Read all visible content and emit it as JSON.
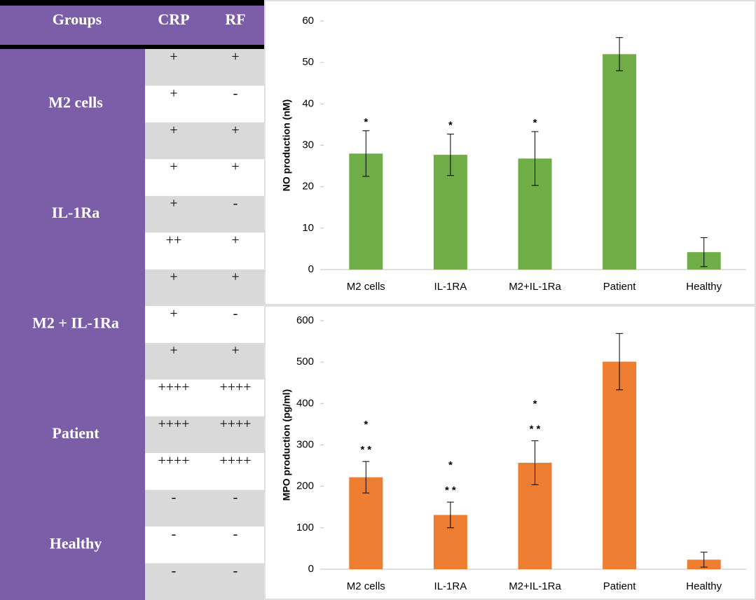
{
  "table": {
    "header": [
      "Groups",
      "CRP",
      "RF"
    ],
    "groups": [
      {
        "name": "M2 cells",
        "rows": [
          [
            "+",
            "+"
          ],
          [
            "+",
            "-"
          ],
          [
            "+",
            "+"
          ]
        ]
      },
      {
        "name": "IL-1Ra",
        "rows": [
          [
            "+",
            "+"
          ],
          [
            "+",
            "-"
          ],
          [
            "++",
            "+"
          ]
        ]
      },
      {
        "name": "M2 + IL-1Ra",
        "rows": [
          [
            "+",
            "+"
          ],
          [
            "+",
            "-"
          ],
          [
            "+",
            "+"
          ]
        ]
      },
      {
        "name": "Patient",
        "rows": [
          [
            "++++",
            "++++"
          ],
          [
            "++++",
            "++++"
          ],
          [
            "++++",
            "++++"
          ]
        ]
      },
      {
        "name": "Healthy",
        "rows": [
          [
            "-",
            "-"
          ],
          [
            "-",
            "-"
          ],
          [
            "-",
            "-"
          ]
        ]
      }
    ]
  },
  "chart_data": [
    {
      "type": "bar",
      "ylabel": "NO production (nM)",
      "categories": [
        "M2 cells",
        "IL-1RA",
        "M2+IL-1Ra",
        "Patient",
        "Healthy"
      ],
      "values": [
        28,
        27.7,
        26.8,
        52,
        4.2
      ],
      "errors": [
        5.5,
        5,
        6.5,
        4,
        3.5
      ],
      "annotations": [
        "*",
        "*",
        "*",
        null,
        null
      ],
      "color": "#70ad47",
      "ylim": [
        0,
        60
      ],
      "yticks": [
        0,
        10,
        20,
        30,
        40,
        50,
        60
      ],
      "grid": false
    },
    {
      "type": "bar",
      "ylabel": "MPO production (pg/ml)",
      "categories": [
        "M2 cells",
        "IL-1RA",
        "M2+IL-1Ra",
        "Patient",
        "Healthy"
      ],
      "values": [
        222,
        131,
        257,
        501,
        23
      ],
      "errors": [
        38,
        31,
        53,
        68,
        18
      ],
      "annotations": [
        [
          "*",
          "**"
        ],
        [
          "*",
          "**"
        ],
        [
          "*",
          "**"
        ],
        null,
        null
      ],
      "color": "#ed7d31",
      "ylim": [
        0,
        600
      ],
      "yticks": [
        0,
        100,
        200,
        300,
        400,
        500,
        600
      ],
      "grid": false
    }
  ]
}
